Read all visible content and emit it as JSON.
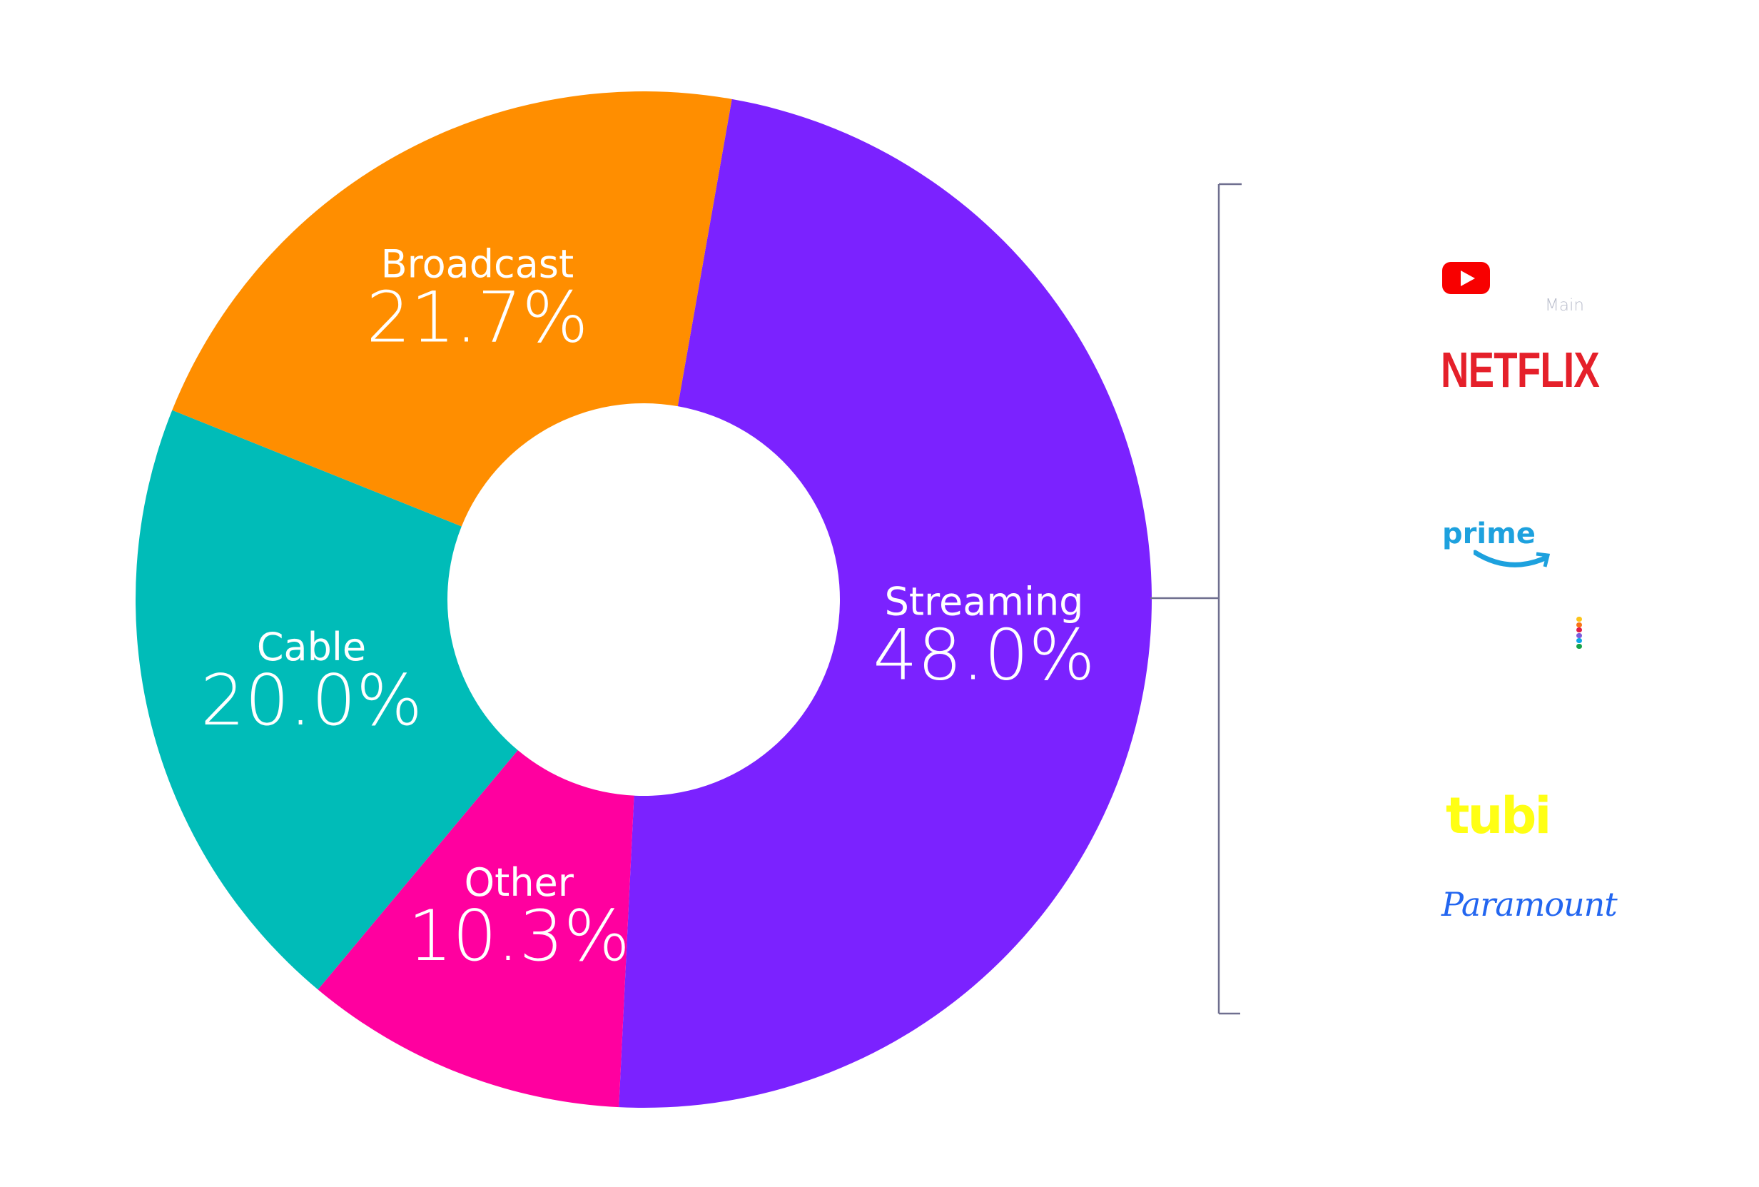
{
  "chart_data": {
    "type": "pie",
    "subtype": "donut",
    "start_angle_deg": 10,
    "slices": [
      {
        "name": "Streaming",
        "value": 48.0,
        "label": "48.0%",
        "color": "#7b22ff"
      },
      {
        "name": "Other",
        "value": 10.3,
        "label": "10.3%",
        "color": "#ff009f"
      },
      {
        "name": "Cable",
        "value": 20.0,
        "label": "20.0%",
        "color": "#00bcb8"
      },
      {
        "name": "Broadcast",
        "value": 21.7,
        "label": "21.7%",
        "color": "#ff8e00"
      }
    ],
    "bracket_color": "#6f6f8f",
    "streaming_breakdown": {
      "caption": "Main",
      "logos": [
        {
          "name": "YouTube",
          "icon": "youtube-icon"
        },
        {
          "name": "NETFLIX"
        },
        {
          "name": "prime"
        },
        {
          "name": "Peacock",
          "icon": "peacock-dots-icon"
        },
        {
          "name": "tubi"
        },
        {
          "name": "Paramount"
        }
      ]
    }
  }
}
